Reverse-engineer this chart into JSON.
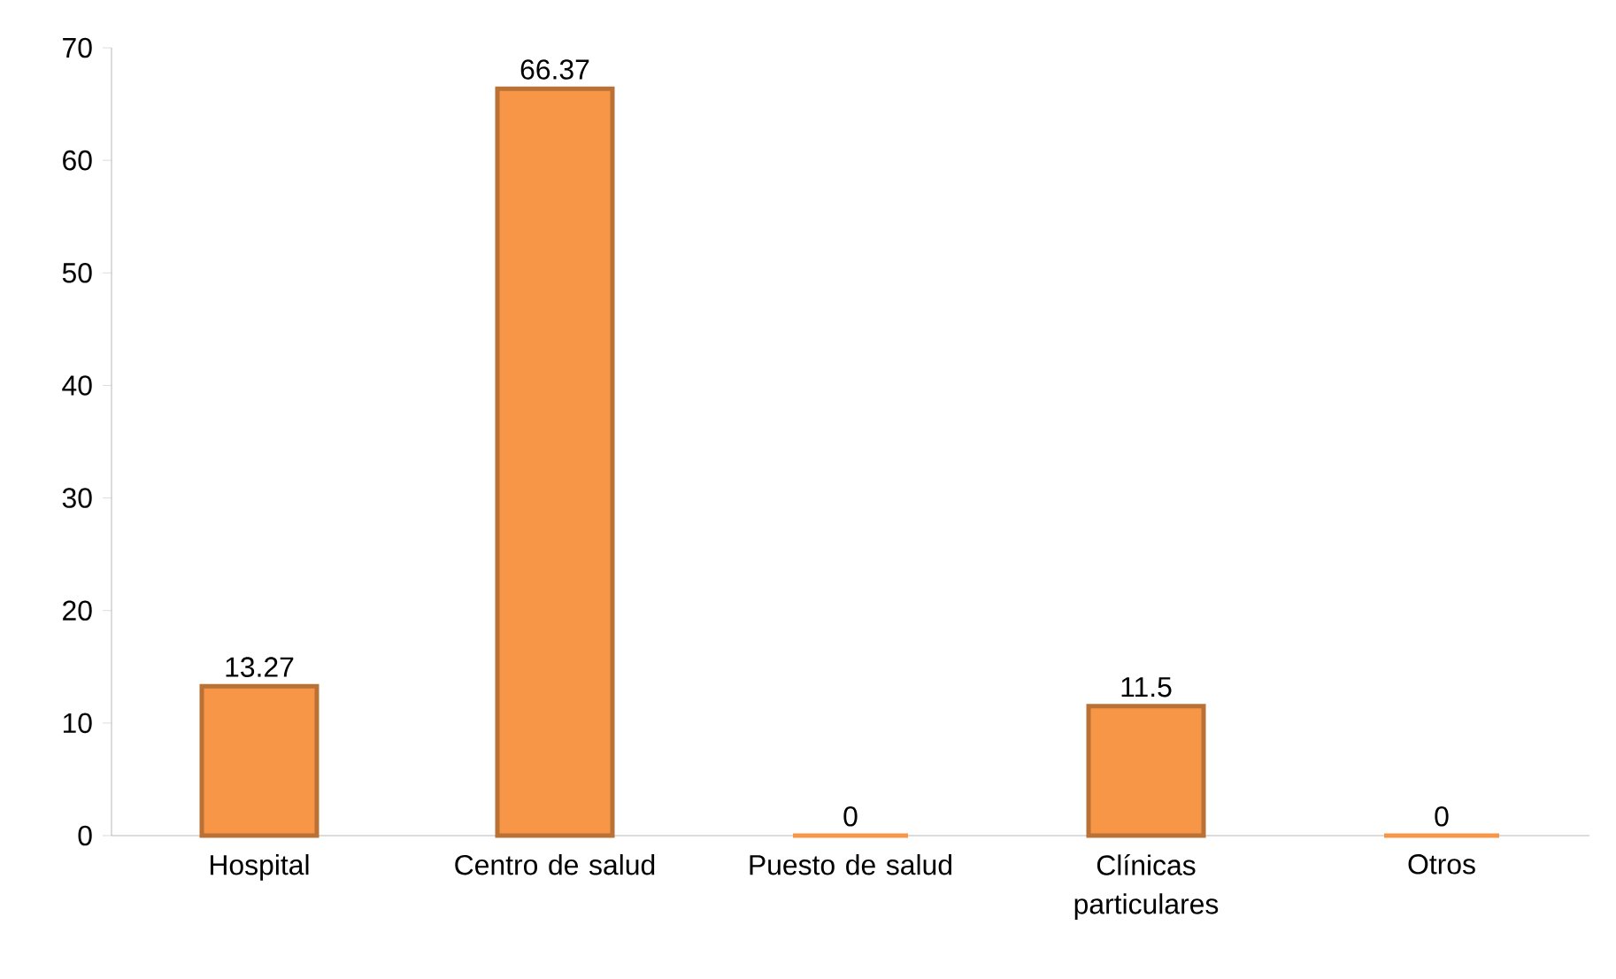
{
  "chart_data": {
    "type": "bar",
    "categories": [
      "Hospital",
      "Centro de salud",
      "Puesto de salud",
      "Clínicas particulares",
      "Otros"
    ],
    "values": [
      13.27,
      66.37,
      0,
      11.5,
      0
    ],
    "color": "#f79646",
    "ylim": [
      0,
      70
    ],
    "yticks": [
      0,
      10,
      20,
      30,
      40,
      50,
      60,
      70
    ],
    "data_labels": true,
    "grid": false
  }
}
